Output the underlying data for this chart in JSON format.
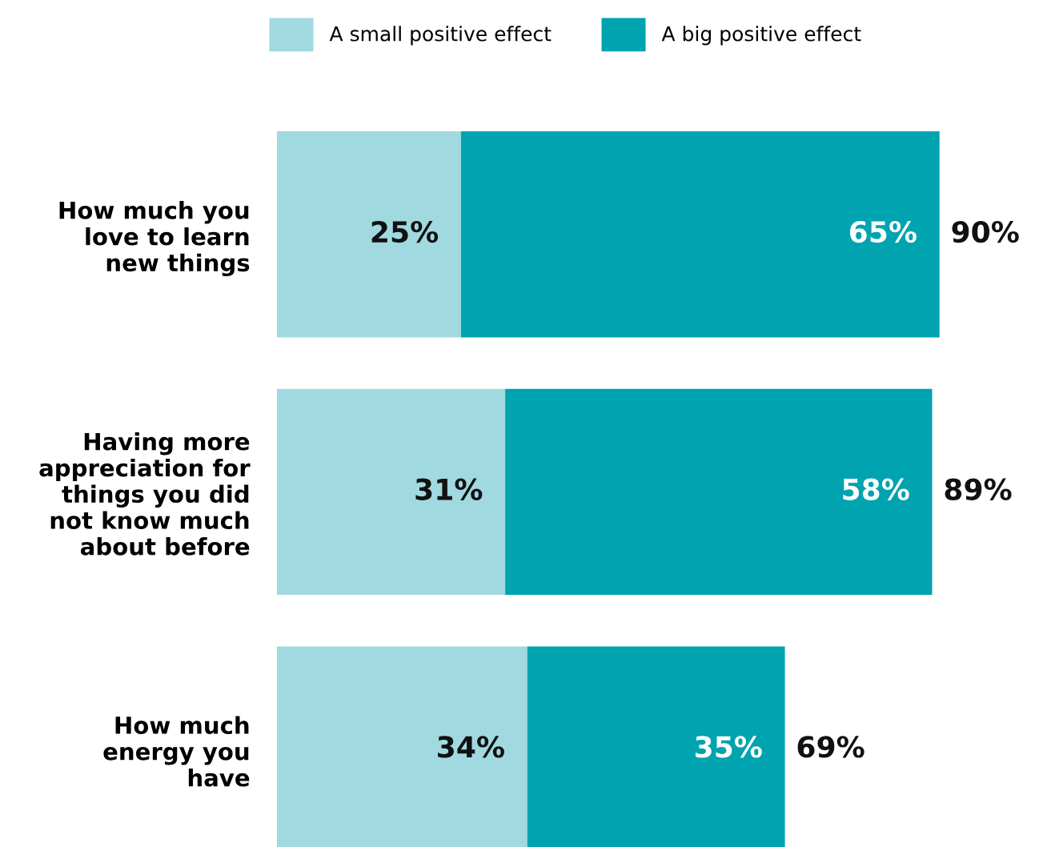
{
  "chart_data": {
    "type": "bar",
    "orientation": "horizontal",
    "stacked": true,
    "categories": [
      "How much you\nlove to learn\nnew things",
      "Having more\nappreciation for\nthings you did\nnot know much\nabout before",
      "How much\nenergy you\nhave"
    ],
    "series": [
      {
        "name": "A small positive effect",
        "color": "#a1d9e0",
        "values": [
          25,
          31,
          34
        ],
        "value_labels": [
          "25%",
          "31%",
          "34%"
        ]
      },
      {
        "name": "A big positive effect",
        "color": "#00a3b0",
        "values": [
          65,
          58,
          35
        ],
        "value_labels": [
          "65%",
          "58%",
          "35%"
        ]
      }
    ],
    "totals": [
      "90%",
      "89%",
      "69%"
    ],
    "legend": "top",
    "grid": false
  }
}
